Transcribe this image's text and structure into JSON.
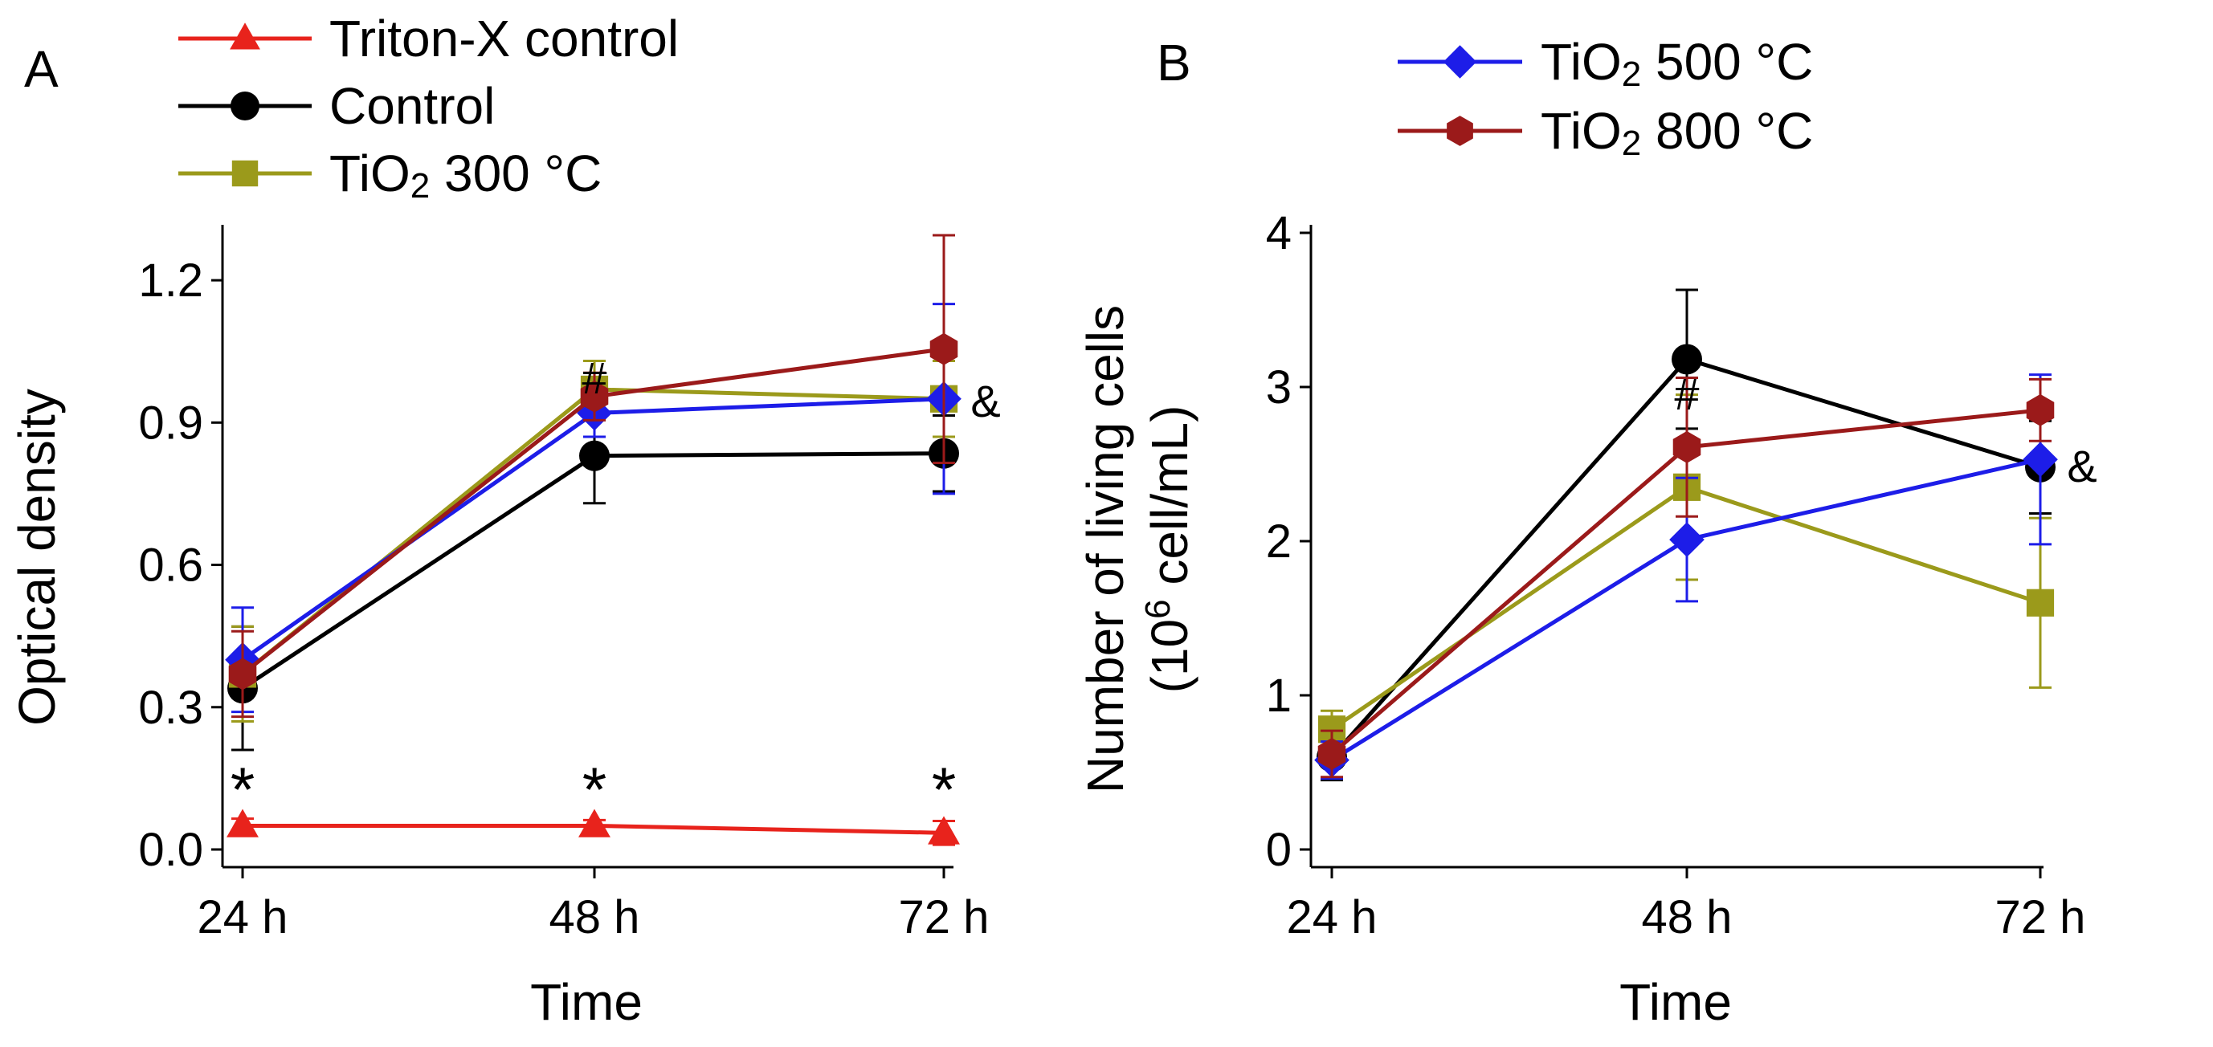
{
  "chart_data": [
    {
      "panel_label": "A",
      "type": "line",
      "xlabel": "Time",
      "ylabel": "Optical density",
      "categories": [
        "24 h",
        "48 h",
        "72 h"
      ],
      "ylim": [
        0,
        1.3
      ],
      "yticks": [
        "0.0",
        "0.3",
        "0.6",
        "0.9",
        "1.2"
      ],
      "series": [
        {
          "name": "Triton-X control",
          "color": "#e8231c",
          "marker": "triangle",
          "values": [
            0.05,
            0.05,
            0.035
          ],
          "errors": [
            0.015,
            0.012,
            0.025
          ]
        },
        {
          "name": "Control",
          "color": "#000000",
          "marker": "circle",
          "values": [
            0.34,
            0.83,
            0.835
          ],
          "errors": [
            0.13,
            0.1,
            0.08
          ]
        },
        {
          "name": "TiO2 300 °C",
          "subscript_name": {
            "main": "TiO",
            "sub": "2",
            "rest": " 300 °C"
          },
          "color": "#9b9a1b",
          "marker": "square",
          "values": [
            0.37,
            0.97,
            0.95
          ],
          "errors": [
            0.1,
            0.06,
            0.08
          ]
        },
        {
          "name": "TiO2 500 °C",
          "color": "#1d1de8",
          "marker": "diamond",
          "values": [
            0.4,
            0.92,
            0.95
          ],
          "errors": [
            0.11,
            0.05,
            0.2
          ]
        },
        {
          "name": "TiO2 800 °C",
          "color": "#9b1a1a",
          "marker": "hexagon",
          "values": [
            0.37,
            0.955,
            1.055
          ],
          "errors": [
            0.09,
            0.05,
            0.24
          ]
        }
      ],
      "annotations": [
        {
          "text": "*",
          "category": "24 h"
        },
        {
          "text": "*",
          "category": "48 h"
        },
        {
          "text": "*",
          "category": "72 h"
        },
        {
          "text": "#",
          "category": "48 h"
        },
        {
          "text": "&",
          "category": "72 h"
        }
      ]
    },
    {
      "panel_label": "B",
      "type": "line",
      "xlabel": "Time",
      "ylabel_line1": "Number of living cells",
      "ylabel_line2_prefix": "(10",
      "ylabel_line2_sup": "6",
      "ylabel_line2_suffix": " cell/mL)",
      "categories": [
        "24 h",
        "48 h",
        "72 h"
      ],
      "ylim": [
        0,
        4
      ],
      "yticks": [
        "0",
        "1",
        "2",
        "3",
        "4"
      ],
      "series": [
        {
          "name": "Control",
          "color": "#000000",
          "marker": "circle",
          "values": [
            0.6,
            3.18,
            2.48
          ],
          "errors": [
            0.15,
            0.45,
            0.3
          ]
        },
        {
          "name": "TiO2 300 °C",
          "color": "#9b9a1b",
          "marker": "square",
          "values": [
            0.78,
            2.35,
            1.6
          ],
          "errors": [
            0.12,
            0.6,
            0.55
          ]
        },
        {
          "name": "TiO2 500 °C",
          "color": "#1d1de8",
          "marker": "diamond",
          "values": [
            0.58,
            2.01,
            2.53
          ],
          "errors": [
            0.12,
            0.4,
            0.55
          ]
        },
        {
          "name": "TiO2 800 °C",
          "color": "#9b1a1a",
          "marker": "hexagon",
          "values": [
            0.62,
            2.61,
            2.85
          ],
          "errors": [
            0.15,
            0.45,
            0.2
          ]
        }
      ],
      "annotations": [
        {
          "text": "#",
          "category": "48 h"
        },
        {
          "text": "&",
          "category": "72 h"
        }
      ]
    }
  ],
  "legend_left": [
    {
      "main": "Triton-X control",
      "sub": "",
      "rest": "",
      "color": "#e8231c",
      "marker": "triangle"
    },
    {
      "main": "Control",
      "sub": "",
      "rest": "",
      "color": "#000000",
      "marker": "circle"
    },
    {
      "main": "TiO",
      "sub": "2",
      "rest": " 300 °C",
      "color": "#9b9a1b",
      "marker": "square"
    }
  ],
  "legend_right": [
    {
      "main": "TiO",
      "sub": "2",
      "rest": " 500 °C",
      "color": "#1d1de8",
      "marker": "diamond"
    },
    {
      "main": "TiO",
      "sub": "2",
      "rest": " 800 °C",
      "color": "#9b1a1a",
      "marker": "hexagon"
    }
  ]
}
